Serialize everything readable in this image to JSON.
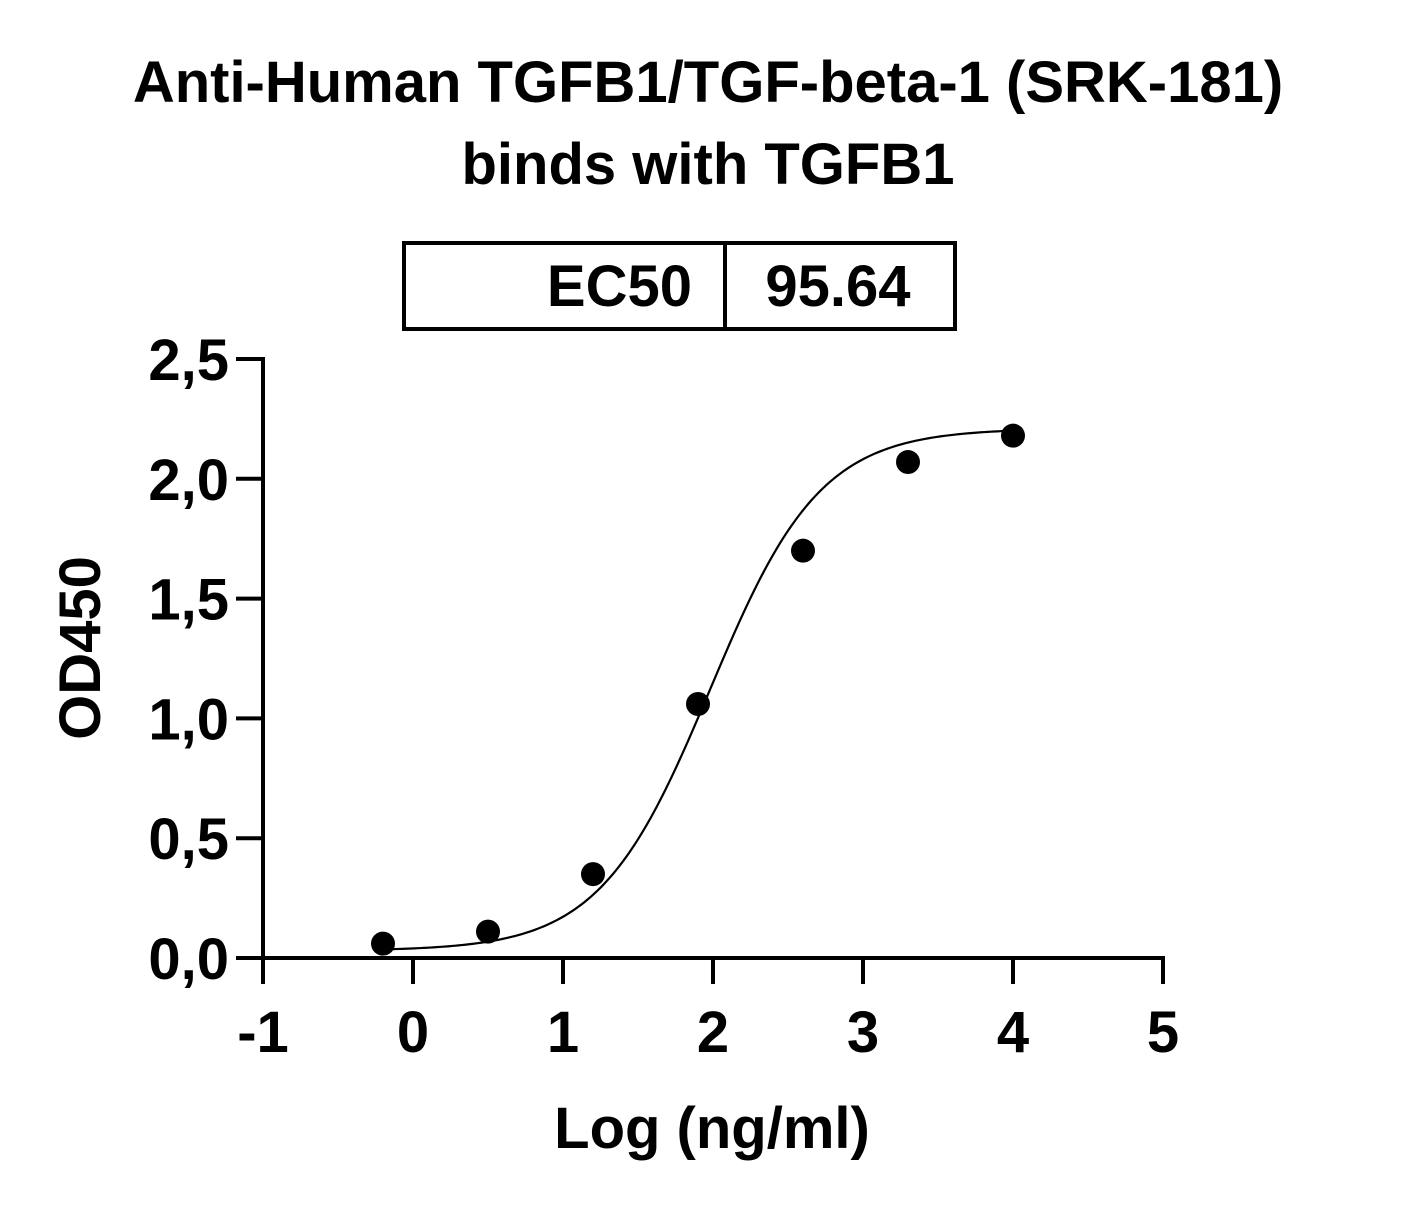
{
  "chart_data": {
    "type": "scatter",
    "title_lines": [
      "Anti-Human TGFB1/TGF-beta-1 (SRK-181)",
      "binds with TGFB1"
    ],
    "xlabel": "Log (ng/ml)",
    "ylabel": "OD450",
    "xlim": [
      -1,
      5
    ],
    "ylim": [
      0,
      2.5
    ],
    "x_ticks": [
      -1,
      0,
      1,
      2,
      3,
      4,
      5
    ],
    "x_tick_labels": [
      "-1",
      "0",
      "1",
      "2",
      "3",
      "4",
      "5"
    ],
    "y_ticks": [
      0,
      0.5,
      1.0,
      1.5,
      2.0,
      2.5
    ],
    "y_tick_labels": [
      "0,0",
      "0,5",
      "1,0",
      "1,5",
      "2,0",
      "2,5"
    ],
    "grid": false,
    "legend": "none",
    "series": [
      {
        "x": [
          -0.2,
          0.5,
          1.2,
          1.9,
          2.6,
          3.3,
          4.0
        ],
        "y": [
          0.06,
          0.11,
          0.35,
          1.06,
          1.7,
          2.07,
          2.18
        ],
        "marker": "filled-circle",
        "fit": "4PL"
      }
    ],
    "fit_params": {
      "bottom": 0.03,
      "top": 2.21,
      "log_ec50": 1.98,
      "hill": 1.18
    },
    "ec50_table": {
      "label": "EC50",
      "value": "95.64"
    }
  }
}
